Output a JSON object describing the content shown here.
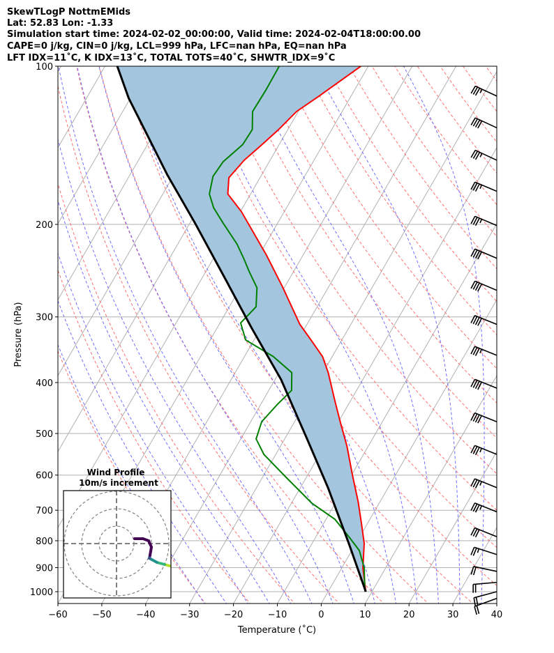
{
  "header": {
    "lines": [
      "SkewTLogP NottmEMids",
      "Lat: 52.83   Lon: -1.33",
      "Simulation start time: 2024-02-02_00:00:00, Valid time: 2024-02-04T18:00:00.00",
      "CAPE=0 j/kg, CIN=0 j/kg, LCL=999 hPa, LFC=nan hPa, EQ=nan hPa",
      "LFT IDX=11˚C, K IDX=13˚C, TOTAL TOTS=40˚C, SHWTR_IDX=9˚C"
    ]
  },
  "chart_data": {
    "type": "line",
    "title": "SkewTLogP NottmEMids",
    "xlabel": "Temperature (˚C)",
    "ylabel": "Pressure (hPa)",
    "xlim": [
      -60,
      40
    ],
    "ylim": [
      1053,
      100
    ],
    "yscale": "log",
    "grid": true,
    "xticks": [
      "−60",
      "−50",
      "−40",
      "−30",
      "−20",
      "−10",
      "0",
      "10",
      "20",
      "30",
      "40"
    ],
    "xtick_values": [
      -60,
      -50,
      -40,
      -30,
      -20,
      -10,
      0,
      10,
      20,
      30,
      40
    ],
    "yticks": [
      "100",
      "200",
      "300",
      "400",
      "500",
      "600",
      "700",
      "800",
      "900",
      "1000"
    ],
    "ytick_values": [
      100,
      200,
      300,
      400,
      500,
      600,
      700,
      800,
      900,
      1000
    ],
    "colors": {
      "temperature": "#ff0000",
      "dewpoint": "#008000",
      "parcel": "#000000",
      "fill": "#a3c6de",
      "dry_adiabat": "#ff7070",
      "moist_adiabat": "#6f6fff",
      "isotherm": "#b0b0b0"
    },
    "series": [
      {
        "name": "temperature",
        "points": [
          [
            1000,
            8.6
          ],
          [
            901,
            4.8
          ],
          [
            810,
            1.9
          ],
          [
            739,
            -1.5
          ],
          [
            674,
            -5.0
          ],
          [
            597,
            -10.0
          ],
          [
            528,
            -14.9
          ],
          [
            475,
            -19.6
          ],
          [
            433,
            -23.6
          ],
          [
            383,
            -28.8
          ],
          [
            357,
            -32.2
          ],
          [
            334,
            -36.6
          ],
          [
            310,
            -41.6
          ],
          [
            263,
            -50.5
          ],
          [
            229,
            -58.3
          ],
          [
            189,
            -69.8
          ],
          [
            175,
            -75.2
          ],
          [
            163,
            -77.1
          ],
          [
            151,
            -75.9
          ],
          [
            141,
            -73.9
          ],
          [
            132,
            -72.1
          ],
          [
            122,
            -70.4
          ],
          [
            114,
            -67.3
          ],
          [
            100,
            -61.7
          ]
        ]
      },
      {
        "name": "dewpoint",
        "points": [
          [
            1000,
            8.4
          ],
          [
            901,
            5.1
          ],
          [
            835,
            1.7
          ],
          [
            786,
            -2.5
          ],
          [
            728,
            -8.0
          ],
          [
            679,
            -15.3
          ],
          [
            606,
            -24.6
          ],
          [
            548,
            -32.7
          ],
          [
            512,
            -36.5
          ],
          [
            475,
            -37.5
          ],
          [
            440,
            -36.2
          ],
          [
            414,
            -34.8
          ],
          [
            383,
            -37.1
          ],
          [
            357,
            -43.4
          ],
          [
            332,
            -51.9
          ],
          [
            308,
            -55.3
          ],
          [
            287,
            -53.9
          ],
          [
            264,
            -56.2
          ],
          [
            246,
            -60.1
          ],
          [
            233,
            -62.9
          ],
          [
            218,
            -66.5
          ],
          [
            199,
            -72.4
          ],
          [
            186,
            -76.6
          ],
          [
            175,
            -79.4
          ],
          [
            162,
            -80.9
          ],
          [
            152,
            -80.5
          ],
          [
            141,
            -78.3
          ],
          [
            132,
            -78.1
          ],
          [
            122,
            -80.4
          ],
          [
            111,
            -80.2
          ],
          [
            100,
            -80.3
          ]
        ]
      },
      {
        "name": "parcel",
        "points": [
          [
            1000,
            8.6
          ],
          [
            810,
            -1.6
          ],
          [
            634,
            -13.7
          ],
          [
            512,
            -24.9
          ],
          [
            395,
            -38.6
          ],
          [
            314,
            -52.3
          ],
          [
            250,
            -65.5
          ],
          [
            199,
            -78.8
          ],
          [
            161,
            -91.5
          ],
          [
            134,
            -101.8
          ],
          [
            115,
            -110.4
          ],
          [
            100,
            -117.2
          ]
        ]
      }
    ],
    "wind_barbs": [
      {
        "p": 114,
        "dir": 295,
        "kt": 35
      },
      {
        "p": 131,
        "dir": 295,
        "kt": 40
      },
      {
        "p": 151,
        "dir": 295,
        "kt": 35
      },
      {
        "p": 173,
        "dir": 293,
        "kt": 35
      },
      {
        "p": 201,
        "dir": 293,
        "kt": 35
      },
      {
        "p": 232,
        "dir": 293,
        "kt": 40
      },
      {
        "p": 267,
        "dir": 293,
        "kt": 40
      },
      {
        "p": 310,
        "dir": 292,
        "kt": 40
      },
      {
        "p": 355,
        "dir": 292,
        "kt": 35
      },
      {
        "p": 410,
        "dir": 292,
        "kt": 40
      },
      {
        "p": 475,
        "dir": 292,
        "kt": 40
      },
      {
        "p": 548,
        "dir": 292,
        "kt": 35
      },
      {
        "p": 634,
        "dir": 292,
        "kt": 35
      },
      {
        "p": 705,
        "dir": 292,
        "kt": 35
      },
      {
        "p": 786,
        "dir": 292,
        "kt": 30
      },
      {
        "p": 850,
        "dir": 288,
        "kt": 25
      },
      {
        "p": 915,
        "dir": 282,
        "kt": 20
      },
      {
        "p": 960,
        "dir": 265,
        "kt": 20
      },
      {
        "p": 1000,
        "dir": 255,
        "kt": 20
      },
      {
        "p": 1030,
        "dir": 250,
        "kt": 20
      }
    ],
    "hodograph": {
      "title": "Wind Profile",
      "subtitle": "10m/s increment",
      "rings_ms": [
        10,
        20,
        30
      ],
      "points_uv": [
        [
          30.4,
          -12.8
        ],
        [
          27.6,
          -12
        ],
        [
          23.2,
          -10.8
        ],
        [
          18.8,
          -8.4
        ],
        [
          19.2,
          -6.8
        ],
        [
          20,
          -2
        ],
        [
          18.4,
          1.6
        ],
        [
          15.2,
          2.8
        ],
        [
          10.4,
          2.8
        ]
      ],
      "colormap": [
        "#b5de2b",
        "#35b779",
        "#21918c",
        "#3b528b",
        "#440154",
        "#440154",
        "#440154",
        "#440154",
        "#440154"
      ]
    }
  }
}
